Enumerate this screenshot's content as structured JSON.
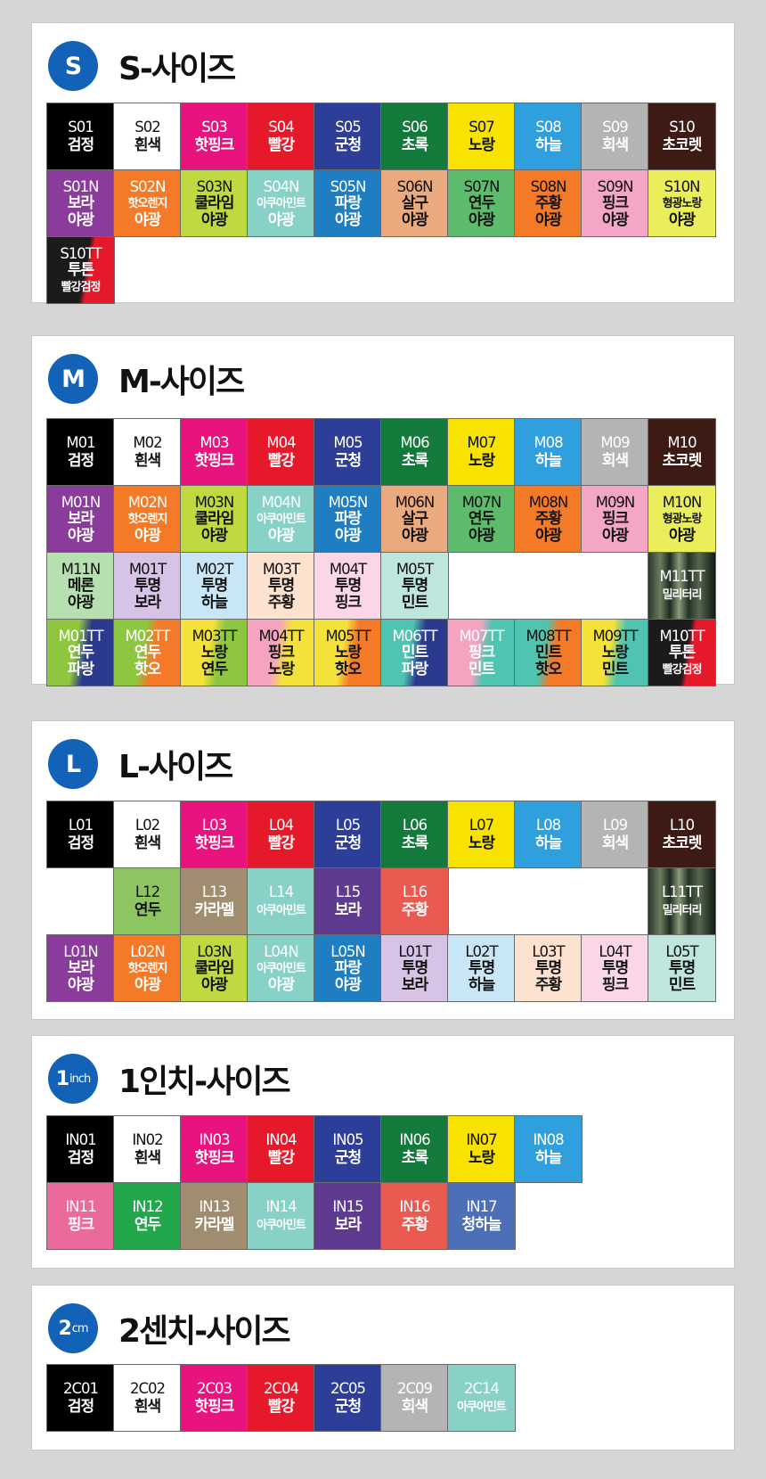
{
  "colors": {
    "black": "#000000",
    "white": "#ffffff",
    "hotpink": "#e8137f",
    "red": "#e6192b",
    "navy": "#2d3e99",
    "green": "#137a3b",
    "yellow": "#f7e200",
    "sky": "#2f9fde",
    "gray": "#b4b4b4",
    "brown": "#3d1a14",
    "purple": "#8a3b9b",
    "orange": "#f47a28",
    "lime": "#c0d940",
    "mint": "#88d1c7",
    "blue": "#1f7ec1",
    "salmon": "#eaaa7e",
    "neongreen": "#5dbb6c",
    "neonorange": "#f47a28",
    "neonpink": "#f4a6c7",
    "neonyellow": "#eaee5a"
  },
  "sections": [
    {
      "badge": "S",
      "title": "S-사이즈",
      "rows": [
        [
          [
            "S01",
            "검정"
          ],
          [
            "S02",
            "흰색"
          ],
          [
            "S03",
            "핫핑크"
          ],
          [
            "S04",
            "빨강"
          ],
          [
            "S05",
            "군청"
          ],
          [
            "S06",
            "초록"
          ],
          [
            "S07",
            "노랑"
          ],
          [
            "S08",
            "하늘"
          ],
          [
            "S09",
            "회색"
          ],
          [
            "S10",
            "초코렛"
          ]
        ],
        [
          [
            "S01N",
            "보라",
            "야광"
          ],
          [
            "S02N",
            "핫오렌지",
            "야광"
          ],
          [
            "S03N",
            "쿨라임",
            "야광"
          ],
          [
            "S04N",
            "아쿠아민트",
            "야광"
          ],
          [
            "S05N",
            "파랑",
            "야광"
          ],
          [
            "S06N",
            "살구",
            "야광"
          ],
          [
            "S07N",
            "연두",
            "야광"
          ],
          [
            "S08N",
            "주황",
            "야광"
          ],
          [
            "S09N",
            "핑크",
            "야광"
          ],
          [
            "S10N",
            "형광노랑",
            "야광"
          ]
        ],
        [
          [
            "S10TT",
            "투톤",
            "빨강검정"
          ]
        ]
      ]
    },
    {
      "badge": "M",
      "title": "M-사이즈",
      "rows": [
        [
          [
            "M01",
            "검정"
          ],
          [
            "M02",
            "흰색"
          ],
          [
            "M03",
            "핫핑크"
          ],
          [
            "M04",
            "빨강"
          ],
          [
            "M05",
            "군청"
          ],
          [
            "M06",
            "초록"
          ],
          [
            "M07",
            "노랑"
          ],
          [
            "M08",
            "하늘"
          ],
          [
            "M09",
            "회색"
          ],
          [
            "M10",
            "초코렛"
          ]
        ],
        [
          [
            "M01N",
            "보라",
            "야광"
          ],
          [
            "M02N",
            "핫오렌지",
            "야광"
          ],
          [
            "M03N",
            "쿨라임",
            "야광"
          ],
          [
            "M04N",
            "아쿠아민트",
            "야광"
          ],
          [
            "M05N",
            "파랑",
            "야광"
          ],
          [
            "M06N",
            "살구",
            "야광"
          ],
          [
            "M07N",
            "연두",
            "야광"
          ],
          [
            "M08N",
            "주황",
            "야광"
          ],
          [
            "M09N",
            "핑크",
            "야광"
          ],
          [
            "M10N",
            "형광노랑",
            "야광"
          ]
        ],
        [
          [
            "M11N",
            "메론",
            "야광"
          ],
          [
            "M01T",
            "투명",
            "보라"
          ],
          [
            "M02T",
            "투명",
            "하늘"
          ],
          [
            "M03T",
            "투명",
            "주황"
          ],
          [
            "M04T",
            "투명",
            "핑크"
          ],
          [
            "M05T",
            "투명",
            "민트"
          ],
          [
            "M11TT",
            "밀리터리"
          ]
        ],
        [
          [
            "M01TT",
            "연두",
            "파랑"
          ],
          [
            "M02TT",
            "연두",
            "핫오"
          ],
          [
            "M03TT",
            "노랑",
            "연두"
          ],
          [
            "M04TT",
            "핑크",
            "노랑"
          ],
          [
            "M05TT",
            "노랑",
            "핫오"
          ],
          [
            "M06TT",
            "민트",
            "파랑"
          ],
          [
            "M07TT",
            "핑크",
            "민트"
          ],
          [
            "M08TT",
            "민트",
            "핫오"
          ],
          [
            "M09TT",
            "노랑",
            "민트"
          ],
          [
            "M10TT",
            "투톤",
            "빨강검정"
          ]
        ]
      ]
    },
    {
      "badge": "L",
      "title": "L-사이즈",
      "rows": [
        [
          [
            "L01",
            "검정"
          ],
          [
            "L02",
            "흰색"
          ],
          [
            "L03",
            "핫핑크"
          ],
          [
            "L04",
            "빨강"
          ],
          [
            "L05",
            "군청"
          ],
          [
            "L06",
            "초록"
          ],
          [
            "L07",
            "노랑"
          ],
          [
            "L08",
            "하늘"
          ],
          [
            "L09",
            "회색"
          ],
          [
            "L10",
            "초코렛"
          ]
        ],
        [
          [
            "L12",
            "연두"
          ],
          [
            "L13",
            "카라멜"
          ],
          [
            "L14",
            "아쿠아민트"
          ],
          [
            "L15",
            "보라"
          ],
          [
            "L16",
            "주황"
          ],
          [
            "L11TT",
            "밀리터리"
          ]
        ],
        [
          [
            "L01N",
            "보라",
            "야광"
          ],
          [
            "L02N",
            "핫오렌지",
            "야광"
          ],
          [
            "L03N",
            "쿨라임",
            "야광"
          ],
          [
            "L04N",
            "아쿠아민트",
            "야광"
          ],
          [
            "L05N",
            "파랑",
            "야광"
          ],
          [
            "L01T",
            "투명",
            "보라"
          ],
          [
            "L02T",
            "투명",
            "하늘"
          ],
          [
            "L03T",
            "투명",
            "주황"
          ],
          [
            "L04T",
            "투명",
            "핑크"
          ],
          [
            "L05T",
            "투명",
            "민트"
          ]
        ]
      ]
    },
    {
      "badge": "1",
      "badge_unit": "inch",
      "title": "1인치-사이즈",
      "rows": [
        [
          [
            "IN01",
            "검정"
          ],
          [
            "IN02",
            "흰색"
          ],
          [
            "IN03",
            "핫핑크"
          ],
          [
            "IN04",
            "빨강"
          ],
          [
            "IN05",
            "군청"
          ],
          [
            "IN06",
            "초록"
          ],
          [
            "IN07",
            "노랑"
          ],
          [
            "IN08",
            "하늘"
          ]
        ],
        [
          [
            "IN11",
            "핑크"
          ],
          [
            "IN12",
            "연두"
          ],
          [
            "IN13",
            "카라멜"
          ],
          [
            "IN14",
            "아쿠아민트"
          ],
          [
            "IN15",
            "보라"
          ],
          [
            "IN16",
            "주황"
          ],
          [
            "IN17",
            "청하늘"
          ]
        ]
      ]
    },
    {
      "badge": "2",
      "badge_unit": "cm",
      "title": "2센치-사이즈",
      "rows": [
        [
          [
            "2C01",
            "검정"
          ],
          [
            "2C02",
            "흰색"
          ],
          [
            "2C03",
            "핫핑크"
          ],
          [
            "2C04",
            "빨강"
          ],
          [
            "2C05",
            "군청"
          ],
          [
            "2C09",
            "회색"
          ],
          [
            "2C14",
            "아쿠아민트"
          ]
        ]
      ]
    }
  ]
}
